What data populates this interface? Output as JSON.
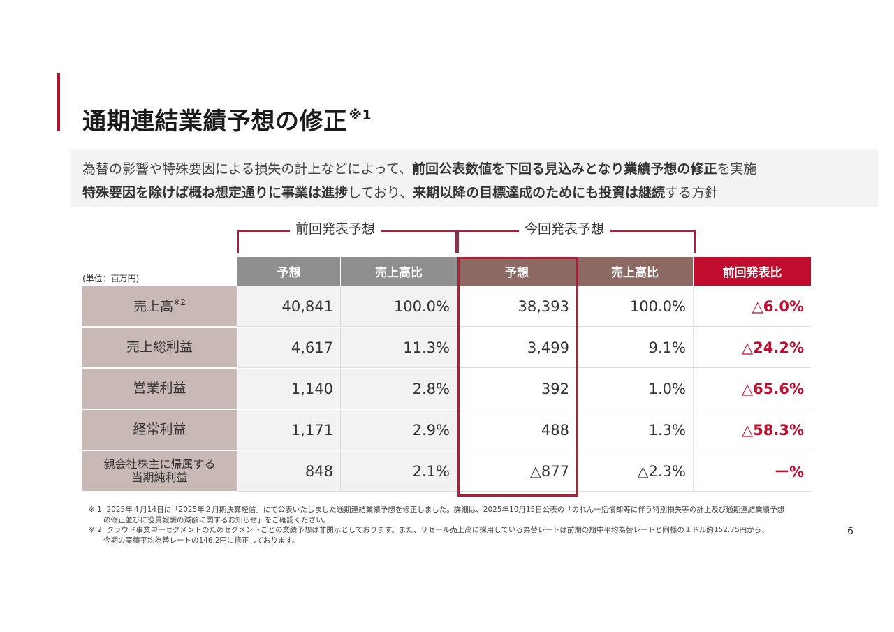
{
  "title": {
    "text": "通期連結業績予想の修正",
    "mark": "※1"
  },
  "summary": {
    "line1": [
      {
        "text": "為替の影響や特殊要因による損失の計上などによって、",
        "bold": false
      },
      {
        "text": "前回公表数値を下回る見込みとなり業績予想の修正",
        "bold": true
      },
      {
        "text": "を実施",
        "bold": false
      }
    ],
    "line2": [
      {
        "text": "特殊要因を除けば概ね想定通りに事業は進捗",
        "bold": true
      },
      {
        "text": "しており、",
        "bold": false
      },
      {
        "text": "来期以降の目標達成のためにも投資は継続",
        "bold": true
      },
      {
        "text": "する方針",
        "bold": false
      }
    ]
  },
  "table": {
    "group_prev": "前回発表予想",
    "group_cur": "今回発表予想",
    "unit": "(単位：百万円)",
    "columns": [
      "予想",
      "売上高比",
      "予想",
      "売上高比",
      "前回発表比"
    ],
    "rows": [
      {
        "label": "売上高",
        "mark": "※2",
        "prev_forecast": "40,841",
        "prev_ratio": "100.0%",
        "cur_forecast": "38,393",
        "cur_ratio": "100.0%",
        "diff": "△6.0%"
      },
      {
        "label": "売上総利益",
        "mark": "",
        "prev_forecast": "4,617",
        "prev_ratio": "11.3%",
        "cur_forecast": "3,499",
        "cur_ratio": "9.1%",
        "diff": "△24.2%"
      },
      {
        "label": "営業利益",
        "mark": "",
        "prev_forecast": "1,140",
        "prev_ratio": "2.8%",
        "cur_forecast": "392",
        "cur_ratio": "1.0%",
        "diff": "△65.6%"
      },
      {
        "label": "経常利益",
        "mark": "",
        "prev_forecast": "1,171",
        "prev_ratio": "2.9%",
        "cur_forecast": "488",
        "cur_ratio": "1.3%",
        "diff": "△58.3%"
      },
      {
        "label": "親会社株主に帰属する\n当期純利益",
        "mark": "",
        "prev_forecast": "848",
        "prev_ratio": "2.1%",
        "cur_forecast": "△877",
        "cur_ratio": "△2.3%",
        "diff": "ー%"
      }
    ]
  },
  "notes": [
    "※ 1. 2025年４月14日に「2025年２月期決算短信」にて公表いたしました通期連結業績予想を修正しました。詳細は、2025年10月15日公表の「のれん一括償却等に伴う特別損失等の計上及び通期連結業績予想",
    "      の修正並びに役員報酬の減額に関するお知らせ」をご確認ください。",
    "※ 2. クラウド事業単一セグメントのためセグメントごとの業績予想は非開示としております。また、リセール売上高に採用している為替レートは前期の期中平均為替レートと同様の１ドル約152.75円から、",
    "      今期の実績平均為替レートの146.2円に修正しております。"
  ],
  "page_number": "6",
  "colors": {
    "accent": "#c00d2d",
    "header_gray": "#8f8f8f",
    "header_brown": "#8c6963",
    "row_label_bg": "#c9b9b6"
  }
}
